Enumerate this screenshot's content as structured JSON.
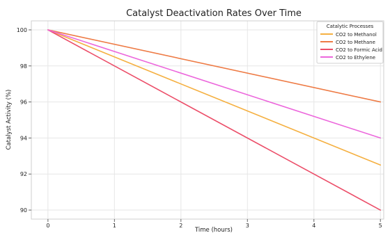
{
  "chart_data": {
    "type": "line",
    "title": "Catalyst Deactivation Rates Over Time",
    "xlabel": "Time (hours)",
    "ylabel": "Catalyst Activity (%)",
    "xlim": [
      -0.25,
      5.05
    ],
    "ylim": [
      89.5,
      100.5
    ],
    "x_ticks": [
      0,
      1,
      2,
      3,
      4,
      5
    ],
    "y_ticks": [
      90,
      92,
      94,
      96,
      98,
      100
    ],
    "grid": true,
    "legend": {
      "title": "Catalytic Processes",
      "position": "top-right"
    },
    "x": [
      0,
      5
    ],
    "series": [
      {
        "name": "CO2 to Methanol",
        "color": "#f5b041",
        "values": [
          100,
          92.5
        ]
      },
      {
        "name": "CO2 to Methane",
        "color": "#ee7b45",
        "values": [
          100,
          96
        ]
      },
      {
        "name": "CO2 to Formic Acid",
        "color": "#ec4e69",
        "values": [
          100,
          90
        ]
      },
      {
        "name": "CO2 to Ethylene",
        "color": "#ec67dc",
        "values": [
          100,
          94
        ]
      }
    ]
  }
}
